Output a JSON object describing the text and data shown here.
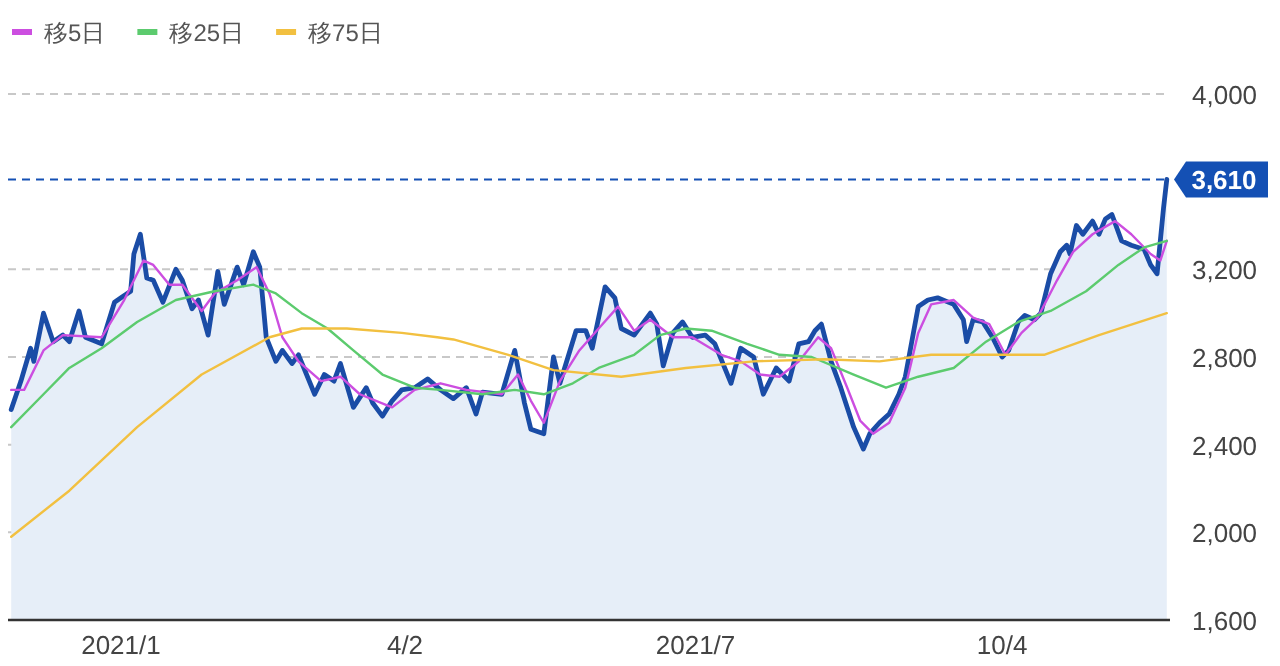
{
  "chart_data": {
    "type": "line",
    "legend": "top left",
    "grid": "y",
    "xlim": [
      "2020-11-30",
      "2021-11-25"
    ],
    "ylim": [
      1600,
      4000
    ],
    "xticks": [
      {
        "value": "2021-01-04",
        "label": "2021/1"
      },
      {
        "value": "2021-04-02",
        "label": "4/2"
      },
      {
        "value": "2021-07-01",
        "label": "2021/7"
      },
      {
        "value": "2021-10-04",
        "label": "10/4"
      }
    ],
    "yticks": [
      {
        "value": 1600,
        "label": "1,600"
      },
      {
        "value": 2000,
        "label": "2,000"
      },
      {
        "value": 2400,
        "label": "2,400"
      },
      {
        "value": 2800,
        "label": "2,800"
      },
      {
        "value": 3200,
        "label": "3,200"
      },
      {
        "value": 4000,
        "label": "4,000"
      }
    ],
    "ref_lines": [
      {
        "axis": "y",
        "value": 3610,
        "label": "3,610",
        "color": "#1450b4",
        "line_style": "dashed"
      }
    ],
    "series": [
      {
        "type": "area",
        "color": "#1a4ca6",
        "x": [
          "2020-12-01",
          "2020-12-04",
          "2020-12-07",
          "2020-12-08",
          "2020-12-11",
          "2020-12-14",
          "2020-12-17",
          "2020-12-19",
          "2020-12-22",
          "2020-12-24",
          "2020-12-29",
          "2021-01-02",
          "2021-01-04",
          "2021-01-07",
          "2021-01-08",
          "2021-01-10",
          "2021-01-12",
          "2021-01-14",
          "2021-01-17",
          "2021-01-21",
          "2021-01-23",
          "2021-01-26",
          "2021-01-28",
          "2021-01-31",
          "2021-02-03",
          "2021-02-05",
          "2021-02-09",
          "2021-02-11",
          "2021-02-14",
          "2021-02-16",
          "2021-02-18",
          "2021-02-21",
          "2021-02-23",
          "2021-02-26",
          "2021-02-28",
          "2021-03-05",
          "2021-03-08",
          "2021-03-11",
          "2021-03-13",
          "2021-03-17",
          "2021-03-21",
          "2021-03-23",
          "2021-03-26",
          "2021-03-29",
          "2021-04-01",
          "2021-04-05",
          "2021-04-09",
          "2021-04-13",
          "2021-04-17",
          "2021-04-21",
          "2021-04-24",
          "2021-04-26",
          "2021-05-02",
          "2021-05-06",
          "2021-05-09",
          "2021-05-11",
          "2021-05-15",
          "2021-05-18",
          "2021-05-20",
          "2021-05-25",
          "2021-05-28",
          "2021-05-30",
          "2021-06-03",
          "2021-06-06",
          "2021-06-08",
          "2021-06-12",
          "2021-06-17",
          "2021-06-19",
          "2021-06-21",
          "2021-06-24",
          "2021-06-27",
          "2021-06-30",
          "2021-07-04",
          "2021-07-07",
          "2021-07-12",
          "2021-07-15",
          "2021-07-19",
          "2021-07-22",
          "2021-07-26",
          "2021-07-30",
          "2021-08-02",
          "2021-08-05",
          "2021-08-07",
          "2021-08-09",
          "2021-08-12",
          "2021-08-15",
          "2021-08-17",
          "2021-08-19",
          "2021-08-22",
          "2021-08-24",
          "2021-08-27",
          "2021-08-30",
          "2021-09-02",
          "2021-09-04",
          "2021-09-06",
          "2021-09-08",
          "2021-09-11",
          "2021-09-14",
          "2021-09-19",
          "2021-09-22",
          "2021-09-23",
          "2021-09-25",
          "2021-09-28",
          "2021-10-01",
          "2021-10-04",
          "2021-10-06",
          "2021-10-09",
          "2021-10-11",
          "2021-10-14",
          "2021-10-16",
          "2021-10-19",
          "2021-10-22",
          "2021-10-24",
          "2021-10-25",
          "2021-10-27",
          "2021-10-29",
          "2021-11-01",
          "2021-11-03",
          "2021-11-05",
          "2021-11-07",
          "2021-11-10",
          "2021-11-13",
          "2021-11-17",
          "2021-11-19",
          "2021-11-21",
          "2021-11-23",
          "2021-11-24"
        ],
        "values": [
          2560,
          2690,
          2840,
          2780,
          3000,
          2870,
          2900,
          2870,
          3010,
          2890,
          2860,
          3050,
          3070,
          3100,
          3270,
          3360,
          3160,
          3150,
          3050,
          3200,
          3150,
          3020,
          3060,
          2900,
          3190,
          3040,
          3210,
          3130,
          3280,
          3210,
          2890,
          2780,
          2830,
          2770,
          2810,
          2630,
          2720,
          2690,
          2770,
          2570,
          2660,
          2590,
          2530,
          2600,
          2650,
          2660,
          2700,
          2650,
          2610,
          2660,
          2540,
          2640,
          2630,
          2830,
          2590,
          2470,
          2450,
          2800,
          2680,
          2920,
          2920,
          2840,
          3120,
          3070,
          2930,
          2900,
          3000,
          2950,
          2760,
          2910,
          2960,
          2890,
          2900,
          2860,
          2680,
          2840,
          2800,
          2630,
          2750,
          2690,
          2860,
          2870,
          2920,
          2950,
          2780,
          2660,
          2570,
          2480,
          2380,
          2450,
          2500,
          2540,
          2630,
          2710,
          2870,
          3030,
          3060,
          3070,
          3040,
          2970,
          2870,
          2970,
          2960,
          2890,
          2800,
          2830,
          2960,
          2990,
          2970,
          3000,
          3180,
          3280,
          3310,
          3270,
          3400,
          3360,
          3420,
          3360,
          3430,
          3450,
          3330,
          3310,
          3290,
          3220,
          3180,
          3480,
          3610
        ]
      },
      {
        "name": "移5日",
        "color": "#cc4ee0",
        "x": [
          "2020-12-01",
          "2020-12-05",
          "2020-12-11",
          "2020-12-17",
          "2020-12-29",
          "2021-01-05",
          "2021-01-11",
          "2021-01-14",
          "2021-01-19",
          "2021-01-23",
          "2021-01-29",
          "2021-02-02",
          "2021-02-09",
          "2021-02-15",
          "2021-02-19",
          "2021-02-23",
          "2021-02-28",
          "2021-03-07",
          "2021-03-13",
          "2021-03-19",
          "2021-03-29",
          "2021-04-05",
          "2021-04-13",
          "2021-04-21",
          "2021-05-02",
          "2021-05-07",
          "2021-05-11",
          "2021-05-15",
          "2021-05-20",
          "2021-05-26",
          "2021-06-01",
          "2021-06-07",
          "2021-06-12",
          "2021-06-17",
          "2021-06-24",
          "2021-06-30",
          "2021-07-09",
          "2021-07-15",
          "2021-07-21",
          "2021-07-27",
          "2021-08-02",
          "2021-08-08",
          "2021-08-12",
          "2021-08-17",
          "2021-08-21",
          "2021-08-25",
          "2021-08-30",
          "2021-09-04",
          "2021-09-08",
          "2021-09-12",
          "2021-09-19",
          "2021-09-25",
          "2021-09-30",
          "2021-10-05",
          "2021-10-10",
          "2021-10-15",
          "2021-10-21",
          "2021-10-26",
          "2021-11-01",
          "2021-11-08",
          "2021-11-13",
          "2021-11-19",
          "2021-11-22",
          "2021-11-24"
        ],
        "values": [
          2650,
          2650,
          2830,
          2900,
          2890,
          3060,
          3240,
          3220,
          3130,
          3130,
          3010,
          3090,
          3150,
          3210,
          3090,
          2890,
          2780,
          2690,
          2710,
          2630,
          2570,
          2650,
          2680,
          2650,
          2630,
          2720,
          2600,
          2500,
          2690,
          2830,
          2930,
          3030,
          2920,
          2970,
          2890,
          2890,
          2810,
          2780,
          2720,
          2710,
          2780,
          2890,
          2840,
          2660,
          2510,
          2450,
          2500,
          2660,
          2910,
          3040,
          3060,
          2980,
          2950,
          2810,
          2910,
          2980,
          3150,
          3280,
          3360,
          3420,
          3360,
          3270,
          3240,
          3330
        ]
      },
      {
        "name": "移25日",
        "color": "#5ccb6e",
        "x": [
          "2020-12-01",
          "2020-12-11",
          "2020-12-19",
          "2020-12-29",
          "2021-01-09",
          "2021-01-21",
          "2021-02-02",
          "2021-02-14",
          "2021-02-21",
          "2021-03-01",
          "2021-03-09",
          "2021-03-17",
          "2021-03-26",
          "2021-04-05",
          "2021-04-13",
          "2021-04-26",
          "2021-05-06",
          "2021-05-15",
          "2021-05-24",
          "2021-06-01",
          "2021-06-12",
          "2021-06-20",
          "2021-06-28",
          "2021-07-06",
          "2021-07-17",
          "2021-07-27",
          "2021-08-06",
          "2021-08-19",
          "2021-08-29",
          "2021-09-08",
          "2021-09-19",
          "2021-09-29",
          "2021-10-09",
          "2021-10-19",
          "2021-10-30",
          "2021-11-09",
          "2021-11-17",
          "2021-11-24"
        ],
        "values": [
          2480,
          2630,
          2750,
          2840,
          2960,
          3060,
          3100,
          3130,
          3090,
          3000,
          2930,
          2830,
          2720,
          2660,
          2650,
          2630,
          2650,
          2630,
          2680,
          2750,
          2810,
          2900,
          2930,
          2920,
          2860,
          2810,
          2800,
          2720,
          2660,
          2710,
          2750,
          2870,
          2960,
          3010,
          3100,
          3220,
          3300,
          3330
        ]
      },
      {
        "name": "移75日",
        "color": "#f2c040",
        "x": [
          "2020-12-01",
          "2020-12-19",
          "2021-01-09",
          "2021-01-29",
          "2021-02-19",
          "2021-03-01",
          "2021-03-15",
          "2021-04-01",
          "2021-04-12",
          "2021-04-17",
          "2021-05-04",
          "2021-05-18",
          "2021-06-08",
          "2021-06-28",
          "2021-07-19",
          "2021-08-10",
          "2021-08-27",
          "2021-09-12",
          "2021-10-03",
          "2021-10-17",
          "2021-11-03",
          "2021-11-24"
        ],
        "values": [
          1980,
          2190,
          2480,
          2720,
          2890,
          2930,
          2930,
          2910,
          2890,
          2880,
          2810,
          2740,
          2710,
          2750,
          2780,
          2790,
          2780,
          2810,
          2810,
          2810,
          2900,
          3000
        ]
      }
    ]
  }
}
